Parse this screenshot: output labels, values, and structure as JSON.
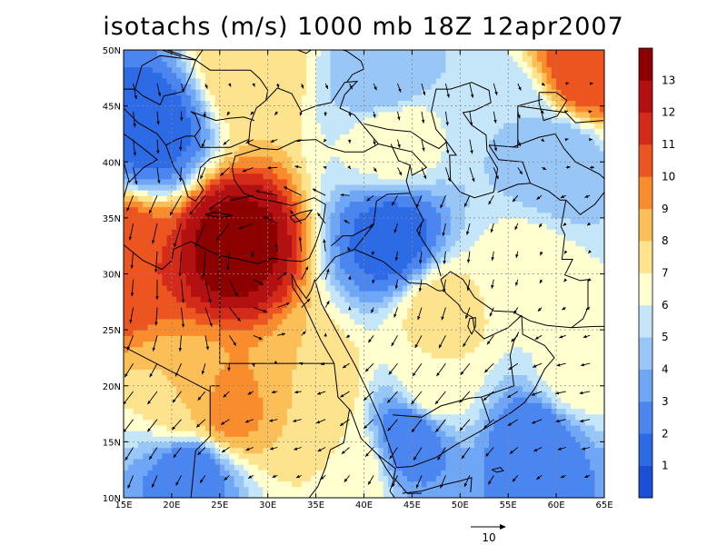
{
  "title": "isotachs (m/s) 1000 mb 18Z 12apr2007",
  "map": {
    "lon_range": [
      15,
      65
    ],
    "lat_range": [
      10,
      50
    ],
    "lon_ticks": [
      "15E",
      "20E",
      "25E",
      "30E",
      "35E",
      "40E",
      "45E",
      "50E",
      "55E",
      "60E",
      "65E"
    ],
    "lat_ticks": [
      "10N",
      "15N",
      "20N",
      "25N",
      "30N",
      "35N",
      "40N",
      "45N",
      "50N"
    ],
    "gridlines": "dotted"
  },
  "colorbar": {
    "labels": [
      "1",
      "2",
      "3",
      "4",
      "5",
      "6",
      "7",
      "8",
      "9",
      "10",
      "11",
      "12",
      "13"
    ],
    "colors": [
      "#1a4fd6",
      "#2d6ae6",
      "#4b86f0",
      "#6fa6f5",
      "#98c6f7",
      "#c5e6f8",
      "#ffffd0",
      "#fde38d",
      "#fcbe56",
      "#f98c2d",
      "#ed5520",
      "#d32a1a",
      "#b31011",
      "#8c0000"
    ]
  },
  "reference_vector": {
    "label": "10"
  },
  "chart_data": {
    "type": "heatmap",
    "title": "isotachs (m/s) 1000 mb 18Z 12apr2007",
    "x_ticks": [
      "15E",
      "20E",
      "25E",
      "30E",
      "35E",
      "40E",
      "45E",
      "50E",
      "55E",
      "60E",
      "65E"
    ],
    "y_ticks": [
      "10N",
      "15N",
      "20N",
      "25N",
      "30N",
      "35N",
      "40N",
      "45N",
      "50N"
    ],
    "color_scale_labels": [
      1,
      2,
      3,
      4,
      5,
      6,
      7,
      8,
      9,
      10,
      11,
      12,
      13
    ],
    "features": [
      {
        "lon": 26.5,
        "lat": 32.5,
        "speed": 13.5
      },
      {
        "lon": 15.0,
        "lat": 31.5,
        "speed": 11
      },
      {
        "lon": 63.0,
        "lat": 48.5,
        "speed": 11
      },
      {
        "lon": 28.0,
        "lat": 48.5,
        "speed": 8
      },
      {
        "lon": 22.0,
        "lat": 18.0,
        "speed": 8
      },
      {
        "lon": 25.5,
        "lat": 17.8,
        "speed": 9.5
      },
      {
        "lon": 48.0,
        "lat": 26.5,
        "speed": 7.5
      },
      {
        "lon": 43.0,
        "lat": 42.5,
        "speed": 7
      },
      {
        "lon": 35.0,
        "lat": 19.5,
        "speed": 8
      },
      {
        "lon": 38.0,
        "lat": 13.0,
        "speed": 7
      },
      {
        "lon": 47.0,
        "lat": 19.5,
        "speed": 7
      },
      {
        "lon": 57.0,
        "lat": 30.5,
        "speed": 6.5
      },
      {
        "lon": 62.0,
        "lat": 21.0,
        "speed": 6.5
      },
      {
        "lon": 55.0,
        "lat": 44.0,
        "speed": 5
      },
      {
        "lon": 22.0,
        "lat": 12.5,
        "speed": 2
      },
      {
        "lon": 58.0,
        "lat": 15.0,
        "speed": 2
      },
      {
        "lon": 43.0,
        "lat": 33.0,
        "speed": 1.5
      },
      {
        "lon": 18.0,
        "lat": 43.0,
        "speed": 1.5
      },
      {
        "lon": 45.0,
        "lat": 16.0,
        "speed": 2
      },
      {
        "lon": 42.0,
        "lat": 47.0,
        "speed": 4
      },
      {
        "lon": 60.0,
        "lat": 40.0,
        "speed": 4
      }
    ]
  }
}
